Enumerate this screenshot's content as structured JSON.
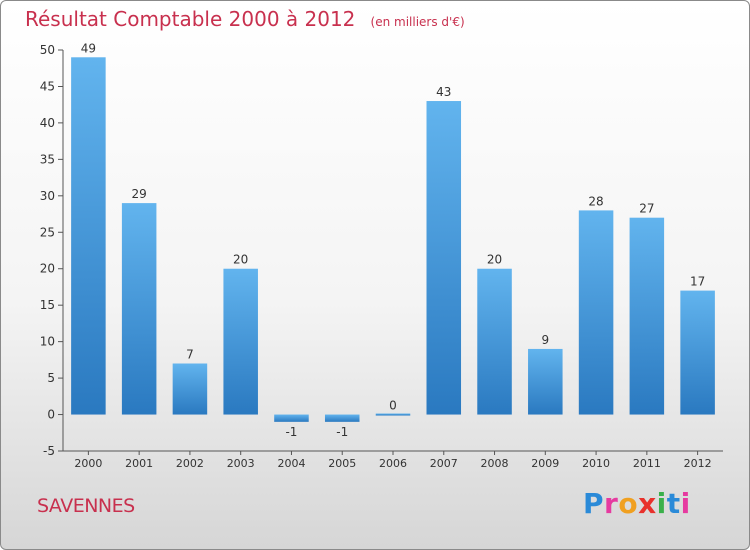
{
  "header": {
    "title": "Résultat Comptable 2000 à 2012",
    "unit": "(en milliers d'€)"
  },
  "town": "SAVENNES",
  "logo": {
    "letters": [
      "P",
      "r",
      "o",
      "x",
      "i",
      "t",
      "i"
    ],
    "colors": [
      "#2a8ad8",
      "#e63aa0",
      "#f0a020",
      "#e8312c",
      "#3ab04a",
      "#2a8ad8",
      "#e63aa0"
    ]
  },
  "colors": {
    "bar_top": "#62b4ee",
    "bar_bottom": "#2a79c0",
    "label": "#333333"
  },
  "chart_data": {
    "type": "bar",
    "categories": [
      "2000",
      "2001",
      "2002",
      "2003",
      "2004",
      "2005",
      "2006",
      "2007",
      "2008",
      "2009",
      "2010",
      "2011",
      "2012"
    ],
    "values": [
      49,
      29,
      7,
      20,
      -1,
      -1,
      0,
      43,
      20,
      9,
      28,
      27,
      17
    ],
    "data_labels": [
      "49",
      "29",
      "7",
      "20",
      "-1",
      "-1",
      "0",
      "43",
      "20",
      "9",
      "28",
      "27",
      "17"
    ],
    "title": "Résultat Comptable 2000 à 2012",
    "xlabel": "",
    "ylabel": "",
    "ylim": [
      -5,
      50
    ],
    "yticks": [
      -5,
      0,
      5,
      10,
      15,
      20,
      25,
      30,
      35,
      40,
      45,
      50
    ],
    "grid": false
  }
}
